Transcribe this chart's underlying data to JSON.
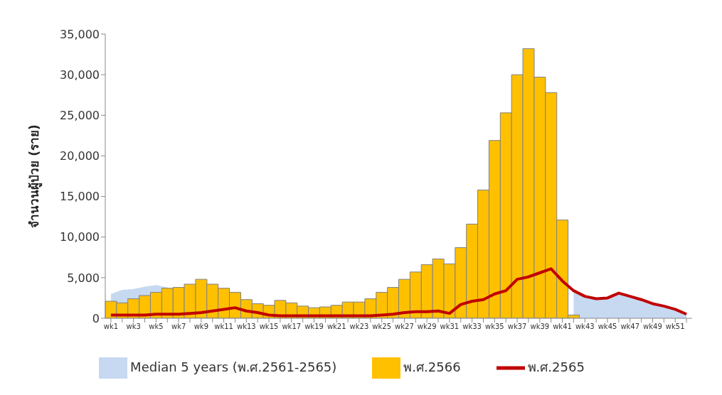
{
  "chart_data": {
    "type": "bar",
    "ylabel": "จำนวนผู้ป่วย (ราย)",
    "categories": [
      "wk1",
      null,
      "wk3",
      null,
      "wk5",
      null,
      "wk7",
      null,
      "wk9",
      null,
      "wk11",
      null,
      "wk13",
      null,
      "wk15",
      null,
      "wk17",
      null,
      "wk19",
      null,
      "wk21",
      null,
      "wk23",
      null,
      "wk25",
      null,
      "wk27",
      null,
      "wk29",
      null,
      "wk31",
      null,
      "wk33",
      null,
      "wk35",
      null,
      "wk37",
      null,
      "wk39",
      null,
      "wk41",
      null,
      "wk43",
      null,
      "wk45",
      null,
      "wk47",
      null,
      "wk49",
      null,
      "wk51",
      null
    ],
    "series": [
      {
        "name": "Median 5 years (พ.ศ.2561-2565)",
        "type": "area",
        "color": "#c6d9f1",
        "values": [
          3000,
          3500,
          3600,
          3900,
          4100,
          3800,
          null,
          null,
          null,
          null,
          null,
          null,
          null,
          null,
          null,
          null,
          null,
          null,
          null,
          null,
          null,
          null,
          null,
          null,
          null,
          null,
          null,
          null,
          null,
          null,
          null,
          null,
          null,
          null,
          null,
          null,
          null,
          null,
          null,
          null,
          null,
          3300,
          2600,
          2300,
          2400,
          3000,
          2600,
          2200,
          1800,
          1400,
          1000,
          500
        ]
      },
      {
        "name": "พ.ศ.2566",
        "color": "#ffc000",
        "values": [
          2100,
          1900,
          2400,
          2800,
          3200,
          3700,
          3800,
          4200,
          4800,
          4200,
          3700,
          3200,
          2300,
          1800,
          1600,
          2200,
          1900,
          1500,
          1300,
          1400,
          1600,
          2000,
          2000,
          2400,
          3200,
          3800,
          4800,
          5700,
          6600,
          7300,
          6700,
          8700,
          11600,
          15800,
          21900,
          25300,
          30000,
          33200,
          29700,
          27800,
          12100,
          400,
          null,
          null,
          null,
          null,
          null,
          null,
          null,
          null,
          null,
          null
        ]
      },
      {
        "name": "พ.ศ.2565",
        "type": "line",
        "color": "#c00000",
        "values": [
          400,
          400,
          400,
          400,
          500,
          500,
          500,
          600,
          700,
          900,
          1100,
          1300,
          900,
          700,
          400,
          300,
          300,
          300,
          300,
          300,
          300,
          300,
          300,
          300,
          400,
          500,
          700,
          800,
          800,
          900,
          600,
          1700,
          2100,
          2300,
          3000,
          3400,
          4800,
          5100,
          5600,
          6100,
          4600,
          3400,
          2700,
          2400,
          2500,
          3100,
          2700,
          2300,
          1800,
          1500,
          1100,
          500
        ]
      }
    ],
    "ylim": [
      0,
      35000
    ],
    "yticks": [
      0,
      {
        "value": 5000,
        "label": "5,000"
      },
      {
        "value": 10000,
        "label": "10,000"
      },
      {
        "value": 15000,
        "label": "15,000"
      },
      {
        "value": 20000,
        "label": "20,000"
      },
      {
        "value": 25000,
        "label": "25,000"
      },
      {
        "value": 30000,
        "label": "30,000"
      },
      {
        "value": 35000,
        "label": "35,000"
      }
    ],
    "grid": false,
    "legend": "bottom",
    "marker": "none"
  }
}
